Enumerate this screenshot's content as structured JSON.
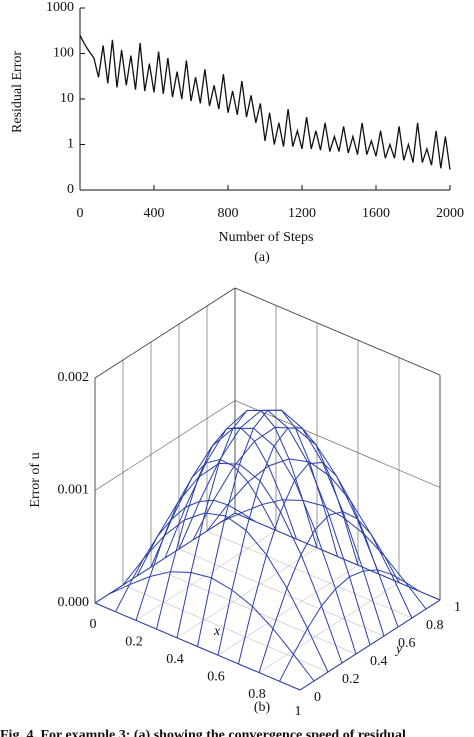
{
  "chart_data": [
    {
      "type": "line",
      "panel_label": "(a)",
      "x_label": "Number of Steps",
      "y_label": "Residual Error",
      "log_y": true,
      "xlim": [
        0,
        2000
      ],
      "xticks": [
        0,
        400,
        800,
        1200,
        1600,
        2000
      ],
      "ylim": [
        0.1,
        1000
      ],
      "yticks": [
        {
          "value": 0.1,
          "label": "0"
        },
        1,
        10,
        100,
        1000
      ],
      "x": [
        0,
        25,
        50,
        75,
        100,
        125,
        150,
        175,
        200,
        225,
        250,
        275,
        300,
        325,
        350,
        375,
        400,
        425,
        450,
        475,
        500,
        525,
        550,
        575,
        600,
        625,
        650,
        675,
        700,
        725,
        750,
        775,
        800,
        825,
        850,
        875,
        900,
        925,
        950,
        975,
        1000,
        1025,
        1050,
        1075,
        1100,
        1125,
        1150,
        1175,
        1200,
        1225,
        1250,
        1275,
        1300,
        1325,
        1350,
        1375,
        1400,
        1425,
        1450,
        1475,
        1500,
        1525,
        1550,
        1575,
        1600,
        1625,
        1650,
        1675,
        1700,
        1725,
        1750,
        1775,
        1800,
        1825,
        1850,
        1875,
        1900,
        1925,
        1950,
        1975,
        2000
      ],
      "series": [
        {
          "color": "#111111",
          "values": [
            250,
            160,
            110,
            80,
            30,
            150,
            22,
            200,
            18,
            120,
            20,
            90,
            16,
            170,
            15,
            60,
            14,
            110,
            13,
            80,
            11,
            40,
            10,
            70,
            9,
            30,
            8,
            45,
            7,
            20,
            6,
            35,
            5,
            15,
            4.5,
            25,
            4,
            12,
            3,
            8,
            1.2,
            5,
            1,
            3,
            0.9,
            6,
            0.9,
            2,
            0.8,
            4,
            0.8,
            2,
            0.75,
            3,
            0.7,
            1.5,
            0.7,
            2.5,
            0.65,
            1.5,
            0.6,
            3,
            0.6,
            1.2,
            0.55,
            2,
            0.5,
            1,
            0.5,
            2.5,
            0.45,
            1,
            0.4,
            3,
            0.4,
            0.8,
            0.35,
            2,
            0.3,
            1.5,
            0.28
          ]
        }
      ]
    },
    {
      "type": "surface",
      "panel_label": "(b)",
      "x_label": "x",
      "y_label": "y",
      "z_label": "Error of u",
      "color": "#2a3fa8",
      "x": [
        0,
        0.1,
        0.2,
        0.3,
        0.4,
        0.5,
        0.6,
        0.7,
        0.8,
        0.9,
        1
      ],
      "y": [
        0,
        0.1,
        0.2,
        0.3,
        0.4,
        0.5,
        0.6,
        0.7,
        0.8,
        0.9,
        1
      ],
      "xlim": [
        0,
        1
      ],
      "xticks": [
        0,
        0.2,
        0.4,
        0.6,
        0.8,
        1
      ],
      "ylim": [
        0,
        1
      ],
      "yticks": [
        0,
        0.2,
        0.4,
        0.6,
        0.8,
        1
      ],
      "zlim": [
        0,
        0.002
      ],
      "zticks": [
        {
          "value": 0,
          "label": "0.000"
        },
        {
          "value": 0.001,
          "label": "0.001"
        },
        {
          "value": 0.002,
          "label": "0.002"
        }
      ],
      "z": [
        [
          0,
          0,
          0,
          0,
          0,
          0,
          0,
          0,
          0,
          0,
          0
        ],
        [
          0,
          0.00016,
          0.00031,
          0.00043,
          0.0005,
          0.00053,
          0.0005,
          0.00043,
          0.00031,
          0.00016,
          0
        ],
        [
          0,
          0.00031,
          0.00059,
          0.00081,
          0.00095,
          0.001,
          0.00095,
          0.00081,
          0.00059,
          0.00031,
          0
        ],
        [
          0,
          0.00043,
          0.00081,
          0.00111,
          0.00131,
          0.00138,
          0.00131,
          0.00111,
          0.00081,
          0.00043,
          0
        ],
        [
          0,
          0.0005,
          0.00095,
          0.00131,
          0.00154,
          0.00162,
          0.00154,
          0.00131,
          0.00095,
          0.0005,
          0
        ],
        [
          0,
          0.00053,
          0.001,
          0.00138,
          0.00162,
          0.0017,
          0.00162,
          0.00138,
          0.001,
          0.00053,
          0
        ],
        [
          0,
          0.0005,
          0.00095,
          0.00131,
          0.00154,
          0.00162,
          0.00154,
          0.00131,
          0.00095,
          0.0005,
          0
        ],
        [
          0,
          0.00043,
          0.00081,
          0.00111,
          0.00131,
          0.00138,
          0.00131,
          0.00111,
          0.00081,
          0.00043,
          0
        ],
        [
          0,
          0.00031,
          0.00059,
          0.00081,
          0.00095,
          0.001,
          0.00095,
          0.00081,
          0.00059,
          0.00031,
          0
        ],
        [
          0,
          0.00016,
          0.00031,
          0.00043,
          0.0005,
          0.00053,
          0.0005,
          0.00043,
          0.00031,
          0.00016,
          0
        ],
        [
          0,
          0,
          0,
          0,
          0,
          0,
          0,
          0,
          0,
          0,
          0
        ]
      ]
    }
  ],
  "caption": "Fig. 4. For example 3: (a) showing the convergence speed of residual"
}
